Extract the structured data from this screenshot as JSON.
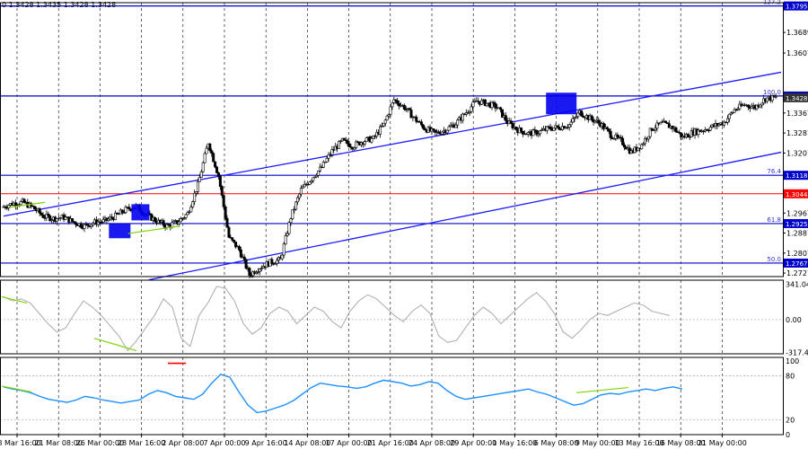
{
  "header": {
    "ohlc_text": "0 1.3428 1.3435 1.3428 1.3428"
  },
  "colors": {
    "level_line": "#0000cc",
    "red_level": "#ff0000",
    "channel": "#1a1aff",
    "candle": "#000000",
    "green_div": "#7fd400",
    "cci_line": "#b0b0b0",
    "rsi_line": "#1e90ff",
    "box": "#0000ee",
    "red_marker": "#ff0000"
  },
  "chart_data": [
    {
      "type": "candlestick",
      "title": "",
      "x": [
        "18 Mar 16:00",
        "21 Mar 08:00",
        "26 Mar 00:00",
        "28 Mar 16:00",
        "2 Apr 08:00",
        "7 Apr 00:00",
        "9 Apr 16:00",
        "14 Apr 08:00",
        "17 Apr 00:00",
        "21 Apr 16:00",
        "24 Apr 08:00",
        "29 Apr 00:00",
        "1 May 16:00",
        "6 May 08:00",
        "9 May 00:00",
        "13 May 16:00",
        "16 May 08:00",
        "21 May 00:00"
      ],
      "close_path": [
        1.299,
        1.3005,
        1.301,
        1.299,
        1.2955,
        1.2945,
        1.295,
        1.293,
        1.2915,
        1.293,
        1.2935,
        1.2955,
        1.298,
        1.2995,
        1.296,
        1.2935,
        1.2915,
        1.293,
        1.2965,
        1.308,
        1.325,
        1.3115,
        1.287,
        1.282,
        1.272,
        1.275,
        1.277,
        1.278,
        1.295,
        1.306,
        1.3105,
        1.315,
        1.3215,
        1.3255,
        1.3235,
        1.3255,
        1.3265,
        1.332,
        1.342,
        1.339,
        1.3345,
        1.3305,
        1.3285,
        1.33,
        1.3325,
        1.337,
        1.3415,
        1.3405,
        1.339,
        1.333,
        1.33,
        1.3285,
        1.329,
        1.3305,
        1.331,
        1.332,
        1.337,
        1.3345,
        1.3325,
        1.328,
        1.3255,
        1.321,
        1.324,
        1.3305,
        1.3325,
        1.331,
        1.327,
        1.329,
        1.33,
        1.3315,
        1.333,
        1.338,
        1.34,
        1.339,
        1.3425,
        1.3428
      ],
      "y_ticks": [
        1.3795,
        1.3689,
        1.3607,
        1.3435,
        1.3367,
        1.3287,
        1.3207,
        1.3118,
        1.3044,
        1.2967,
        1.2925,
        1.2887,
        1.2807,
        1.2767,
        1.2727
      ],
      "ylim": [
        1.2713,
        1.3808
      ],
      "price_tags": [
        {
          "value": 1.3795,
          "label": "1.3795",
          "color": "#0000cc"
        },
        {
          "value": 1.3435,
          "label": "1.3435",
          "color": "#0000cc"
        },
        {
          "value": 1.3428,
          "label": "1.3428",
          "color": "#333333"
        },
        {
          "value": 1.3118,
          "label": "1.3118",
          "color": "#0000cc"
        },
        {
          "value": 1.3044,
          "label": "1.3044",
          "color": "#ff0000"
        },
        {
          "value": 1.2925,
          "label": "1.2925",
          "color": "#0000cc"
        },
        {
          "value": 1.2767,
          "label": "1.2767",
          "color": "#0000cc"
        }
      ],
      "fib_levels": [
        {
          "value": 1.3795,
          "label": "127.2"
        },
        {
          "value": 1.3435,
          "label": "100.0"
        },
        {
          "value": 1.3118,
          "label": "76.4"
        },
        {
          "value": 1.2925,
          "label": "61.8"
        },
        {
          "value": 1.2767,
          "label": "50.0"
        }
      ],
      "red_level": 1.3044,
      "upper_channel": {
        "x": [
          0,
          75
        ],
        "y": [
          1.2955,
          1.353
        ]
      },
      "middle_channel": {
        "x": [
          14,
          75
        ],
        "y": [
          1.27,
          1.321
        ]
      },
      "lower_channel": {
        "x": [
          14,
          75
        ],
        "y": [
          1.27,
          1.321
        ]
      }
    },
    {
      "type": "line",
      "title": "",
      "y_ticks": [
        {
          "value": 341.0423,
          "label": "341.0423"
        },
        {
          "value": 0,
          "label": "0.00"
        },
        {
          "value": -317.444,
          "label": "-317.444"
        }
      ],
      "ylim": [
        -330,
        380
      ],
      "values": [
        220,
        180,
        200,
        160,
        60,
        -40,
        -120,
        -80,
        60,
        180,
        120,
        40,
        -60,
        -160,
        -300,
        -200,
        -80,
        40,
        200,
        120,
        -180,
        -260,
        40,
        160,
        320,
        300,
        180,
        -40,
        -140,
        -80,
        60,
        120,
        80,
        -40,
        40,
        120,
        80,
        -20,
        -80,
        80,
        180,
        240,
        200,
        120,
        40,
        -20,
        80,
        140,
        60,
        -160,
        -220,
        -200,
        -80,
        40,
        120,
        60,
        -40,
        40,
        120,
        200,
        260,
        180,
        60,
        -120,
        -180,
        -100,
        0,
        60,
        40,
        80,
        120,
        160,
        140,
        80,
        60,
        40
      ]
    },
    {
      "type": "line",
      "title": "",
      "y_ticks": [
        {
          "value": 100,
          "label": "100"
        },
        {
          "value": 80,
          "label": "80"
        },
        {
          "value": 20,
          "label": "20"
        },
        {
          "value": 0,
          "label": "0"
        }
      ],
      "ylim": [
        0,
        105
      ],
      "values": [
        65,
        62,
        60,
        57,
        52,
        48,
        46,
        44,
        47,
        52,
        50,
        47,
        45,
        43,
        45,
        47,
        55,
        60,
        57,
        52,
        50,
        48,
        55,
        70,
        82,
        78,
        58,
        40,
        30,
        32,
        36,
        40,
        46,
        55,
        64,
        70,
        68,
        66,
        65,
        63,
        65,
        70,
        74,
        72,
        70,
        66,
        68,
        72,
        70,
        60,
        52,
        48,
        50,
        52,
        54,
        56,
        58,
        60,
        62,
        58,
        55,
        50,
        45,
        40,
        42,
        48,
        54,
        56,
        55,
        58,
        60,
        62,
        60,
        63,
        65,
        62
      ]
    }
  ]
}
